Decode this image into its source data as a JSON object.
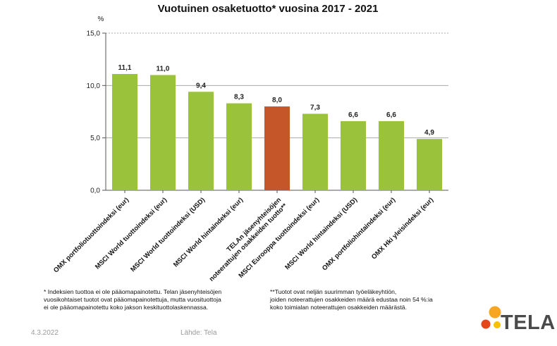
{
  "title": "Vuotuinen osaketuotto* vuosina 2017 - 2021",
  "notes": {
    "left": "* Indeksien tuottoa ei ole pääomapainotettu. Telan jäsenyhteisöjen\nvuosikohtaiset tuotot ovat pääomapainotettuja, mutta vuosituottoja\nei ole pääomapainotettu koko jakson keskituottolaskennassa.",
    "right": "**Tuotot ovat neljän suurimman työeläkeyhtiön,\njoiden noteerattujen osakkeiden määrä edustaa noin 54 %:ia\nkoko toimialan noteerattujen osakkeiden määrästä."
  },
  "footer": {
    "date": "4.3.2022",
    "source": "Lähde: Tela"
  },
  "logo": {
    "text": "TELA"
  },
  "colors": {
    "bar": "#9ac33b",
    "highlight": "#c4562a",
    "grid": "#aaaaaa",
    "axis": "#555555"
  },
  "chart_data": {
    "type": "bar",
    "ylabel": "%",
    "ylim": [
      0,
      15
    ],
    "yticks": [
      "0,0",
      "5,0",
      "10,0",
      "15,0"
    ],
    "grid": true,
    "categories": [
      "OMX portfoliotuottoindeksi (eur)",
      "MSCI World tuottoindeksi (eur)",
      "MSCI World tuottoindeksi (USD)",
      "MSCI World hintaindeksi (eur)",
      "TELAn jäsenyhteisöjen noteerattujen osakkeiden tuotto**",
      "MSCI Eurooppa tuottoindeksi (eur)",
      "MSCI World hintaindeksi (USD)",
      "OMX portfoliohintaindeksi (eur)",
      "OMX  Hki yleisindeksi (eur)"
    ],
    "values": [
      11.1,
      11.0,
      9.4,
      8.3,
      8.0,
      7.3,
      6.6,
      6.6,
      4.9
    ],
    "value_labels": [
      "11,1",
      "11,0",
      "9,4",
      "8,3",
      "8,0",
      "7,3",
      "6,6",
      "6,6",
      "4,9"
    ],
    "highlight_index": 4
  }
}
